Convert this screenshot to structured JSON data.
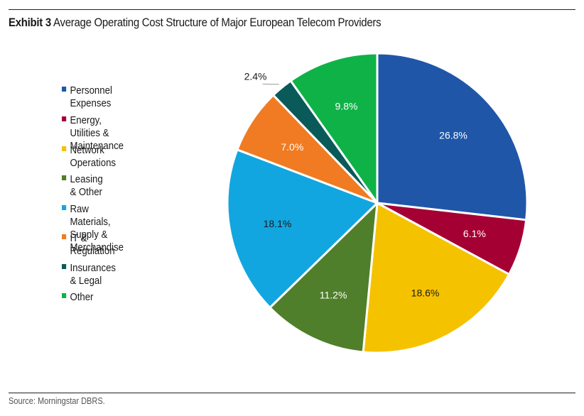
{
  "header": {
    "exhibit": "Exhibit 3",
    "title": "Average Operating Cost Structure of Major European Telecom Providers"
  },
  "footer": {
    "source": "Source: Morningstar DBRS."
  },
  "chart_data": {
    "type": "pie",
    "title": "Average Operating Cost Structure of Major European Telecom Providers",
    "legend_position": "left",
    "start_angle_deg": 0,
    "direction": "clockwise",
    "categories": [
      "Personnel Expenses",
      "Energy, Utilities & Maintenance",
      "Network Operations",
      "Leasing & Other",
      "Raw Materials, Supply & Merchandise",
      "IT & Regulation",
      "Insurances & Legal",
      "Other"
    ],
    "legend_labels": [
      "Personnel Expenses",
      "Energy, Utilities & Maintenance",
      "Network Operations",
      "Leasing & Other",
      "Raw Materials, Supply &\nMerchandise",
      "IT & Regulation",
      "Insurances & Legal",
      "Other"
    ],
    "values": [
      26.8,
      6.1,
      18.6,
      11.2,
      18.1,
      7.0,
      2.4,
      9.8
    ],
    "labels": [
      "26.8%",
      "6.1%",
      "18.6%",
      "11.2%",
      "18.1%",
      "7.0%",
      "2.4%",
      "9.8%"
    ],
    "colors": [
      "#1f56a8",
      "#a50034",
      "#f5c200",
      "#4f7f2a",
      "#12a6e0",
      "#f07b22",
      "#0b5a5a",
      "#0fb247"
    ],
    "label_colors": [
      "#ffffff",
      "#ffffff",
      "#1a1a1a",
      "#ffffff",
      "#1a1a1a",
      "#ffffff",
      "#1a1a1a",
      "#ffffff"
    ],
    "outside_labels": [
      false,
      false,
      false,
      false,
      false,
      false,
      true,
      false
    ]
  }
}
